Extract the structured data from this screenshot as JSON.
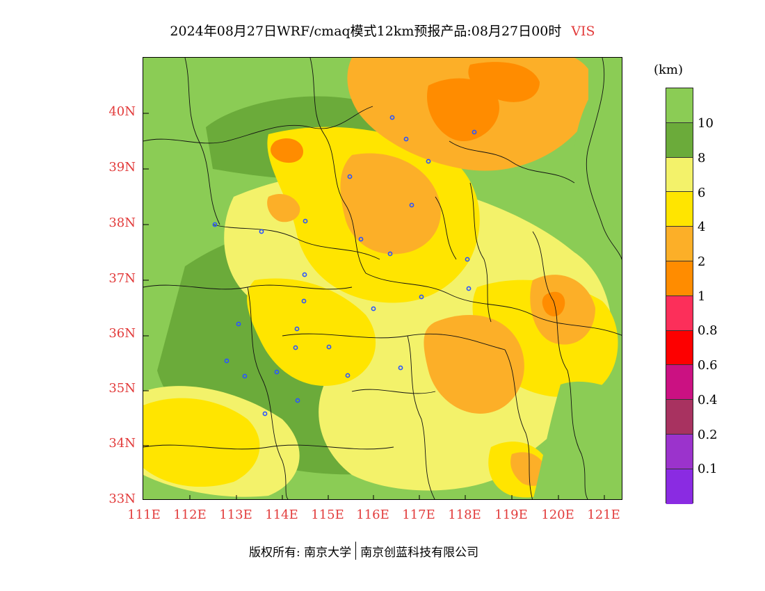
{
  "title": {
    "main": "2024年08月27日WRF/cmaq模式12km预报产品:08月27日00时",
    "variable": "VIS"
  },
  "axes": {
    "lat_labels": [
      "40N",
      "39N",
      "38N",
      "37N",
      "36N",
      "35N",
      "34N",
      "33N"
    ],
    "lon_labels": [
      "111E",
      "112E",
      "113E",
      "114E",
      "115E",
      "116E",
      "117E",
      "118E",
      "119E",
      "120E",
      "121E"
    ]
  },
  "legend": {
    "unit": "(km)",
    "colors": [
      "#8bcc55",
      "#6bab3a",
      "#f3f26a",
      "#ffe500",
      "#fcaf28",
      "#ff8c00",
      "#fc2f5a",
      "#fd0000",
      "#cb1182",
      "#a83260",
      "#9b33cc",
      "#8a2be2"
    ],
    "labels": [
      "10",
      "8",
      "6",
      "4",
      "2",
      "1",
      "0.8",
      "0.6",
      "0.4",
      "0.2",
      "0.1"
    ]
  },
  "footer": {
    "copyright": "版权所有: 南京大学",
    "company": "南京创蓝科技有限公司"
  }
}
